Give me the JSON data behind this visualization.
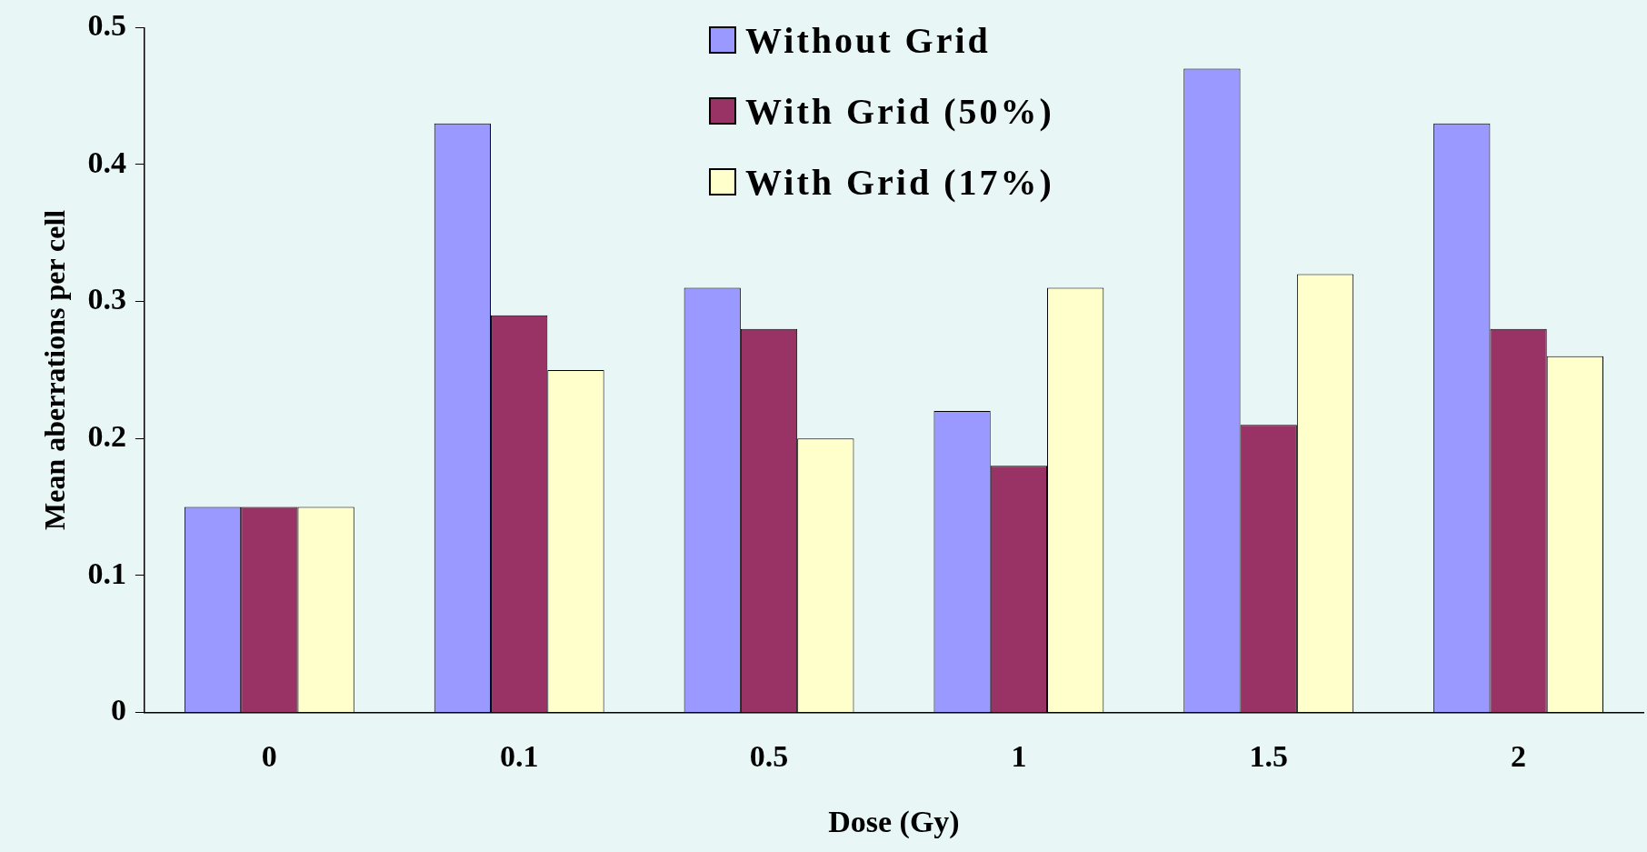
{
  "chart_data": {
    "type": "bar",
    "xlabel": "Dose (Gy)",
    "ylabel": "Mean aberrations per cell",
    "categories": [
      "0",
      "0.1",
      "0.5",
      "1",
      "1.5",
      "2"
    ],
    "series": [
      {
        "name": "Without Grid",
        "color": "#9999ff",
        "values": [
          0.15,
          0.43,
          0.31,
          0.22,
          0.47,
          0.43
        ]
      },
      {
        "name": "With Grid (50%)",
        "color": "#993366",
        "values": [
          0.15,
          0.29,
          0.28,
          0.18,
          0.21,
          0.28
        ]
      },
      {
        "name": "With Grid (17%)",
        "color": "#ffffcc",
        "values": [
          0.15,
          0.25,
          0.2,
          0.31,
          0.32,
          0.26
        ]
      }
    ],
    "ylim": [
      0,
      0.5
    ],
    "yticks": [
      0,
      0.1,
      0.2,
      0.3,
      0.4,
      0.5
    ],
    "grid": false,
    "legend": "top"
  }
}
